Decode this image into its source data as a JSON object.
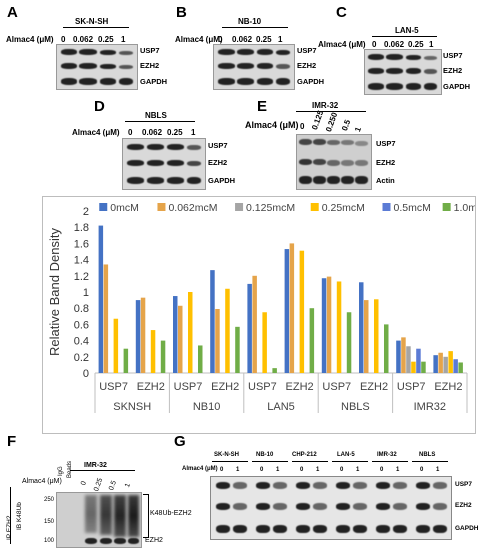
{
  "figure": {
    "panels": {
      "A": {
        "letter": "A",
        "cell_line": "SK-N-SH",
        "treatment": "Almac4 (μM)",
        "doses": [
          "0",
          "0.062",
          "0.25",
          "1"
        ],
        "rows": [
          "USP7",
          "EZH2",
          "GAPDH"
        ]
      },
      "B": {
        "letter": "B",
        "cell_line": "NB-10",
        "treatment": "Almac4 (μM)",
        "doses": [
          "0",
          "0.062",
          "0.25",
          "1"
        ],
        "rows": [
          "USP7",
          "EZH2",
          "GAPDH"
        ]
      },
      "C": {
        "letter": "C",
        "cell_line": "LAN-5",
        "treatment": "Almac4 (μM)",
        "doses": [
          "0",
          "0.062",
          "0.25",
          "1"
        ],
        "rows": [
          "USP7",
          "EZH2",
          "GAPDH"
        ]
      },
      "D": {
        "letter": "D",
        "cell_line": "NBLS",
        "treatment": "Almac4 (μM)",
        "doses": [
          "0",
          "0.062",
          "0.25",
          "1"
        ],
        "rows": [
          "USP7",
          "EZH2",
          "GAPDH"
        ]
      },
      "E": {
        "letter": "E",
        "cell_line": "IMR-32",
        "treatment": "Almac4 (μM)",
        "doses": [
          "0",
          "0.125",
          "0.250",
          "0.5",
          "1"
        ],
        "rows": [
          "USP7",
          "EZH2",
          "Actin"
        ]
      },
      "F": {
        "letter": "F",
        "cell_line": "IMR-32",
        "treatment": "Almac4 (μM)",
        "lanes": [
          "IgG",
          "Beads",
          "0",
          "0.25",
          "0.5",
          "1"
        ],
        "mw": [
          "250",
          "150",
          "100"
        ],
        "ip": "IP EZH2",
        "ib": "IB K48Ub",
        "bracket": "K48Ub-EZH2",
        "bottom": "EZH2"
      },
      "G": {
        "letter": "G",
        "cell_lines": [
          "SK-N-SH",
          "NB-10",
          "CHP-212",
          "LAN-5",
          "IMR-32",
          "NBLS"
        ],
        "treatment": "Almac4 (μM)",
        "doses": [
          "0",
          "1"
        ],
        "rows": [
          "USP7",
          "EZH2",
          "GAPDH"
        ]
      }
    }
  },
  "chart_data": {
    "type": "bar",
    "title": "",
    "ylabel": "Relative Band Density",
    "xlabel": "",
    "ylim": [
      0,
      2
    ],
    "yticks": [
      "0",
      "0.2",
      "0.4",
      "0.6",
      "0.8",
      "1",
      "1.2",
      "1.4",
      "1.6",
      "1.8",
      "2"
    ],
    "groups": [
      "SKNSH",
      "NB10",
      "LAN5",
      "NBLS",
      "IMR32"
    ],
    "categories": [
      "USP7",
      "EZH2",
      "USP7",
      "EZH2",
      "USP7",
      "EZH2",
      "USP7",
      "EZH2",
      "USP7",
      "EZH2"
    ],
    "series": [
      {
        "name": "0mcM",
        "color": "#4472c4",
        "values": [
          1.82,
          0.9,
          0.95,
          1.27,
          1.1,
          1.53,
          1.17,
          1.12,
          0.4,
          0.22
        ]
      },
      {
        "name": "0.062mcM",
        "color": "#e5a44a",
        "values": [
          1.34,
          0.93,
          0.83,
          0.79,
          1.2,
          1.6,
          1.19,
          0.9,
          0.44,
          0.25
        ]
      },
      {
        "name": "0.125mcM",
        "color": "#a5a5a5",
        "values": [
          null,
          null,
          null,
          null,
          null,
          null,
          null,
          null,
          0.33,
          0.2
        ]
      },
      {
        "name": "0.25mcM",
        "color": "#ffc000",
        "values": [
          0.67,
          0.53,
          1.0,
          1.04,
          0.75,
          1.51,
          1.13,
          0.91,
          0.14,
          0.27
        ]
      },
      {
        "name": "0.5mcM",
        "color": "#5b7bd5",
        "values": [
          null,
          null,
          null,
          null,
          null,
          null,
          null,
          null,
          0.3,
          0.17
        ]
      },
      {
        "name": "1.0mcM",
        "color": "#70ad47",
        "values": [
          0.3,
          0.4,
          0.34,
          0.57,
          0.06,
          0.8,
          0.75,
          0.6,
          0.14,
          0.13
        ]
      }
    ],
    "legend_position": "top",
    "grid": false
  }
}
